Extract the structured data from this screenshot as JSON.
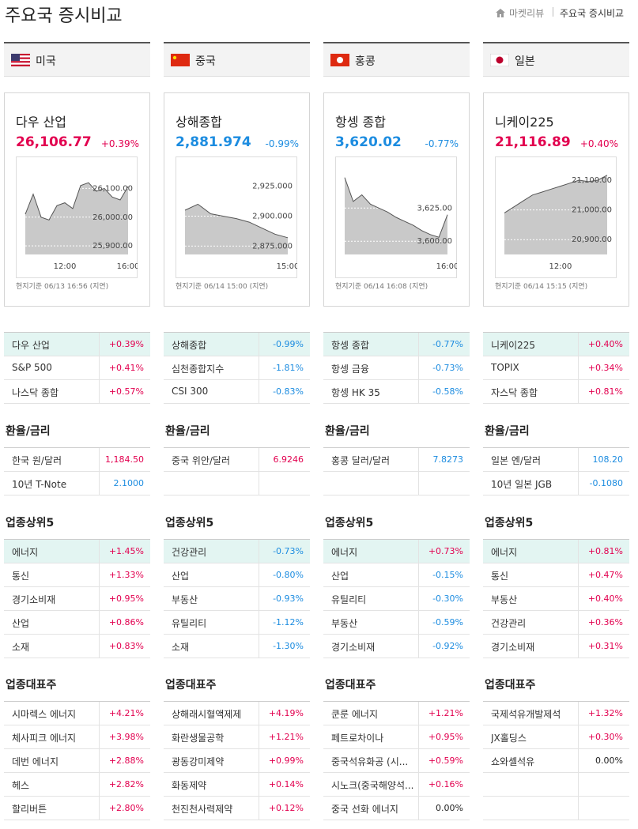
{
  "header": {
    "title": "주요국 증시비교",
    "breadcrumb": [
      "마켓리뷰",
      "주요국 증시비교"
    ]
  },
  "palette": {
    "up": "#e2004f",
    "down": "#1c8ce0",
    "flat": "#222222"
  },
  "section_titles": {
    "fx": "환율/금리",
    "sectors": "업종상위5",
    "stocks": "업종대표주"
  },
  "markets": [
    {
      "country": "미국",
      "index": {
        "name": "다우 산업",
        "price": "26,106.77",
        "change": "+0.39%",
        "color": "up"
      },
      "chart": {
        "type": "line",
        "x": [
          "09:30",
          "10:00",
          "10:30",
          "11:00",
          "11:30",
          "12:00",
          "12:30",
          "13:00",
          "13:30",
          "14:00",
          "14:30",
          "15:00",
          "15:30",
          "16:00"
        ],
        "values": [
          26010,
          26080,
          26000,
          25990,
          26040,
          26050,
          26030,
          26110,
          26120,
          26090,
          26100,
          26070,
          26060,
          26106.77
        ],
        "ylim": [
          25870,
          26170
        ],
        "yticks": [
          {
            "value": 26100,
            "label": "26,100.00"
          },
          {
            "value": 26000,
            "label": "26,000.00"
          },
          {
            "value": 25900,
            "label": "25,900.00"
          }
        ],
        "xticks": [
          "12:00",
          "16:00"
        ]
      },
      "note": "현지기준 06/13 16:56 (지연)",
      "indices": [
        {
          "name": "다우 산업",
          "value": "+0.39%",
          "color": "up"
        },
        {
          "name": "S&P 500",
          "value": "+0.41%",
          "color": "up"
        },
        {
          "name": "나스닥 종합",
          "value": "+0.57%",
          "color": "up"
        }
      ],
      "fx": [
        {
          "name": "한국 원/달러",
          "value": "1,184.50",
          "color": "up"
        },
        {
          "name": "10년 T-Note",
          "value": "2.1000",
          "color": "down"
        }
      ],
      "sectors": [
        {
          "name": "에너지",
          "value": "+1.45%",
          "color": "up"
        },
        {
          "name": "통신",
          "value": "+1.33%",
          "color": "up"
        },
        {
          "name": "경기소비재",
          "value": "+0.95%",
          "color": "up"
        },
        {
          "name": "산업",
          "value": "+0.86%",
          "color": "up"
        },
        {
          "name": "소재",
          "value": "+0.83%",
          "color": "up"
        }
      ],
      "stocks": [
        {
          "name": "시마렉스 에너지",
          "value": "+4.21%",
          "color": "up"
        },
        {
          "name": "체사피크 에너지",
          "value": "+3.98%",
          "color": "up"
        },
        {
          "name": "데번 에너지",
          "value": "+2.88%",
          "color": "up"
        },
        {
          "name": "헤스",
          "value": "+2.82%",
          "color": "up"
        },
        {
          "name": "할리버튼",
          "value": "+2.80%",
          "color": "up"
        }
      ]
    },
    {
      "country": "중국",
      "index": {
        "name": "상해종합",
        "price": "2,881.974",
        "change": "-0.99%",
        "color": "down"
      },
      "chart": {
        "type": "line",
        "x": [
          "09:30",
          "10:00",
          "10:30",
          "11:00",
          "11:30",
          "13:30",
          "14:00",
          "14:30",
          "15:00"
        ],
        "values": [
          2905,
          2910,
          2902,
          2900,
          2898,
          2895,
          2890,
          2885,
          2881.974
        ],
        "ylim": [
          2868,
          2940
        ],
        "yticks": [
          {
            "value": 2925,
            "label": "2,925.000"
          },
          {
            "value": 2900,
            "label": "2,900.000"
          },
          {
            "value": 2875,
            "label": "2,875.000"
          }
        ],
        "xticks": [
          "15:00"
        ]
      },
      "note": "현지기준 06/14 15:00 (지연)",
      "indices": [
        {
          "name": "상해종합",
          "value": "-0.99%",
          "color": "down"
        },
        {
          "name": "심천종합지수",
          "value": "-1.81%",
          "color": "down"
        },
        {
          "name": "CSI 300",
          "value": "-0.83%",
          "color": "down"
        }
      ],
      "fx": [
        {
          "name": "중국 위안/달러",
          "value": "6.9246",
          "color": "up"
        }
      ],
      "sectors": [
        {
          "name": "건강관리",
          "value": "-0.73%",
          "color": "down"
        },
        {
          "name": "산업",
          "value": "-0.80%",
          "color": "down"
        },
        {
          "name": "부동산",
          "value": "-0.93%",
          "color": "down"
        },
        {
          "name": "유틸리티",
          "value": "-1.12%",
          "color": "down"
        },
        {
          "name": "소재",
          "value": "-1.30%",
          "color": "down"
        }
      ],
      "stocks": [
        {
          "name": "상해래시혈액제제",
          "value": "+4.19%",
          "color": "up"
        },
        {
          "name": "화란생물공학",
          "value": "+1.21%",
          "color": "up"
        },
        {
          "name": "광동강미제약",
          "value": "+0.99%",
          "color": "up"
        },
        {
          "name": "화동제약",
          "value": "+0.14%",
          "color": "up"
        },
        {
          "name": "천진천사력제약",
          "value": "+0.12%",
          "color": "up"
        }
      ]
    },
    {
      "country": "홍콩",
      "index": {
        "name": "항셍 종합",
        "price": "3,620.02",
        "change": "-0.77%",
        "color": "down"
      },
      "chart": {
        "type": "line",
        "x": [
          "09:30",
          "10:00",
          "10:30",
          "11:00",
          "11:30",
          "12:00",
          "13:00",
          "13:30",
          "14:00",
          "14:30",
          "15:00",
          "15:30",
          "16:00"
        ],
        "values": [
          3648,
          3630,
          3635,
          3628,
          3625,
          3622,
          3618,
          3615,
          3612,
          3608,
          3605,
          3603,
          3620.02
        ],
        "ylim": [
          3590,
          3655
        ],
        "yticks": [
          {
            "value": 3625,
            "label": "3,625.00"
          },
          {
            "value": 3600,
            "label": "3,600.00"
          }
        ],
        "xticks": [
          "16:00"
        ]
      },
      "note": "현지기준 06/14 16:08 (지연)",
      "indices": [
        {
          "name": "항셍 종합",
          "value": "-0.77%",
          "color": "down"
        },
        {
          "name": "항셍 금융",
          "value": "-0.73%",
          "color": "down"
        },
        {
          "name": "항셍 HK 35",
          "value": "-0.58%",
          "color": "down"
        }
      ],
      "fx": [
        {
          "name": "홍콩 달러/달러",
          "value": "7.8273",
          "color": "down"
        }
      ],
      "sectors": [
        {
          "name": "에너지",
          "value": "+0.73%",
          "color": "up"
        },
        {
          "name": "산업",
          "value": "-0.15%",
          "color": "down"
        },
        {
          "name": "유틸리티",
          "value": "-0.30%",
          "color": "down"
        },
        {
          "name": "부동산",
          "value": "-0.59%",
          "color": "down"
        },
        {
          "name": "경기소비재",
          "value": "-0.92%",
          "color": "down"
        }
      ],
      "stocks": [
        {
          "name": "쿤룬 에너지",
          "value": "+1.21%",
          "color": "up"
        },
        {
          "name": "페트로차이나",
          "value": "+0.95%",
          "color": "up"
        },
        {
          "name": "중국석유화공 (시...",
          "value": "+0.59%",
          "color": "up"
        },
        {
          "name": "시노크(중국해양석...",
          "value": "+0.16%",
          "color": "up"
        },
        {
          "name": "중국 선화 에너지",
          "value": "0.00%",
          "color": "flat"
        }
      ]
    },
    {
      "country": "일본",
      "index": {
        "name": "니케이225",
        "price": "21,116.89",
        "change": "+0.40%",
        "color": "up"
      },
      "chart": {
        "type": "line",
        "x": [
          "09:00",
          "09:30",
          "10:00",
          "10:30",
          "11:00",
          "11:30",
          "12:00",
          "13:00",
          "13:30",
          "14:00",
          "14:30",
          "15:00"
        ],
        "values": [
          20990,
          21010,
          21030,
          21050,
          21060,
          21070,
          21080,
          21090,
          21100,
          21095,
          21100,
          21116.89
        ],
        "ylim": [
          20850,
          21140
        ],
        "yticks": [
          {
            "value": 21100,
            "label": "21,100.00"
          },
          {
            "value": 21000,
            "label": "21,000.00"
          },
          {
            "value": 20900,
            "label": "20,900.00"
          }
        ],
        "xticks": [
          "12:00"
        ]
      },
      "note": "현지기준 06/14 15:15 (지연)",
      "indices": [
        {
          "name": "니케이225",
          "value": "+0.40%",
          "color": "up"
        },
        {
          "name": "TOPIX",
          "value": "+0.34%",
          "color": "up"
        },
        {
          "name": "자스닥 종합",
          "value": "+0.81%",
          "color": "up"
        }
      ],
      "fx": [
        {
          "name": "일본 엔/달러",
          "value": "108.20",
          "color": "down"
        },
        {
          "name": "10년 일본 JGB",
          "value": "-0.1080",
          "color": "down"
        }
      ],
      "sectors": [
        {
          "name": "에너지",
          "value": "+0.81%",
          "color": "up"
        },
        {
          "name": "통신",
          "value": "+0.47%",
          "color": "up"
        },
        {
          "name": "부동산",
          "value": "+0.40%",
          "color": "up"
        },
        {
          "name": "건강관리",
          "value": "+0.36%",
          "color": "up"
        },
        {
          "name": "경기소비재",
          "value": "+0.31%",
          "color": "up"
        }
      ],
      "stocks": [
        {
          "name": "국제석유개발제석",
          "value": "+1.32%",
          "color": "up"
        },
        {
          "name": "JX홀딩스",
          "value": "+0.30%",
          "color": "up"
        },
        {
          "name": "쇼와셸석유",
          "value": "0.00%",
          "color": "flat"
        }
      ]
    }
  ]
}
